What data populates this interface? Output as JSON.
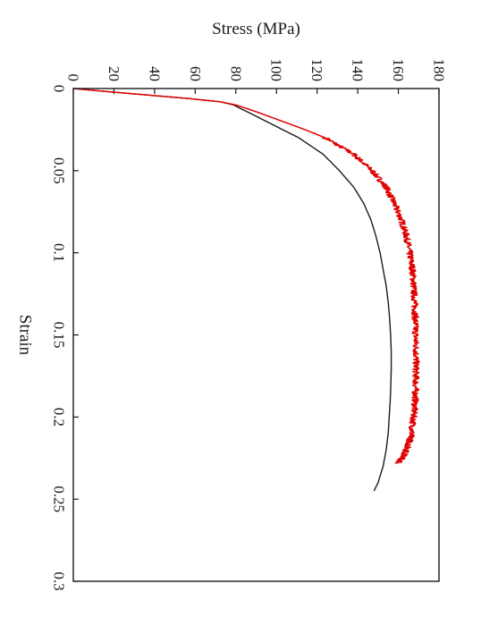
{
  "chart_data": {
    "type": "line",
    "orientation": "rotated-90-clockwise",
    "title": "",
    "xlabel": "Strain",
    "ylabel": "Stress (MPa)",
    "xlim": [
      0,
      0.3
    ],
    "ylim": [
      0,
      180
    ],
    "x_ticks": [
      "0",
      "0.05",
      "0.1",
      "0.15",
      "0.2",
      "0.25",
      "0.3"
    ],
    "y_ticks": [
      "0",
      "20",
      "40",
      "60",
      "80",
      "100",
      "120",
      "140",
      "160",
      "180"
    ],
    "grid": false,
    "legend": "none",
    "series": [
      {
        "color": "#1a1a1a",
        "noisy": false,
        "x": [
          0,
          0.002,
          0.004,
          0.006,
          0.008,
          0.01,
          0.012,
          0.015,
          0.02,
          0.025,
          0.03,
          0.04,
          0.05,
          0.06,
          0.07,
          0.08,
          0.09,
          0.1,
          0.11,
          0.12,
          0.13,
          0.14,
          0.15,
          0.16,
          0.17,
          0.18,
          0.19,
          0.2,
          0.21,
          0.22,
          0.23,
          0.24,
          0.245
        ],
        "y": [
          0,
          18,
          37,
          56,
          72,
          79,
          82,
          87,
          95,
          103,
          111,
          123,
          131,
          138,
          143,
          146.5,
          149,
          151,
          152.5,
          154,
          155,
          155.7,
          156.2,
          156.5,
          156.5,
          156.3,
          156,
          155.5,
          155,
          154,
          152.5,
          150,
          148
        ]
      },
      {
        "color": "#e00000",
        "noisy": true,
        "x": [
          0,
          0.002,
          0.004,
          0.006,
          0.008,
          0.01,
          0.012,
          0.015,
          0.02,
          0.025,
          0.03,
          0.04,
          0.05,
          0.06,
          0.07,
          0.08,
          0.09,
          0.1,
          0.11,
          0.12,
          0.13,
          0.14,
          0.15,
          0.16,
          0.17,
          0.18,
          0.19,
          0.2,
          0.21,
          0.215,
          0.22,
          0.225,
          0.228
        ],
        "y": [
          0,
          18,
          37,
          56,
          72,
          80,
          85,
          92,
          103,
          114,
          124,
          138,
          147,
          154,
          158,
          161.5,
          164,
          165.5,
          167,
          167.5,
          168,
          168.3,
          168.5,
          168.7,
          168.7,
          168.5,
          168.3,
          167.5,
          166.5,
          165.5,
          164,
          162,
          160
        ]
      }
    ]
  }
}
